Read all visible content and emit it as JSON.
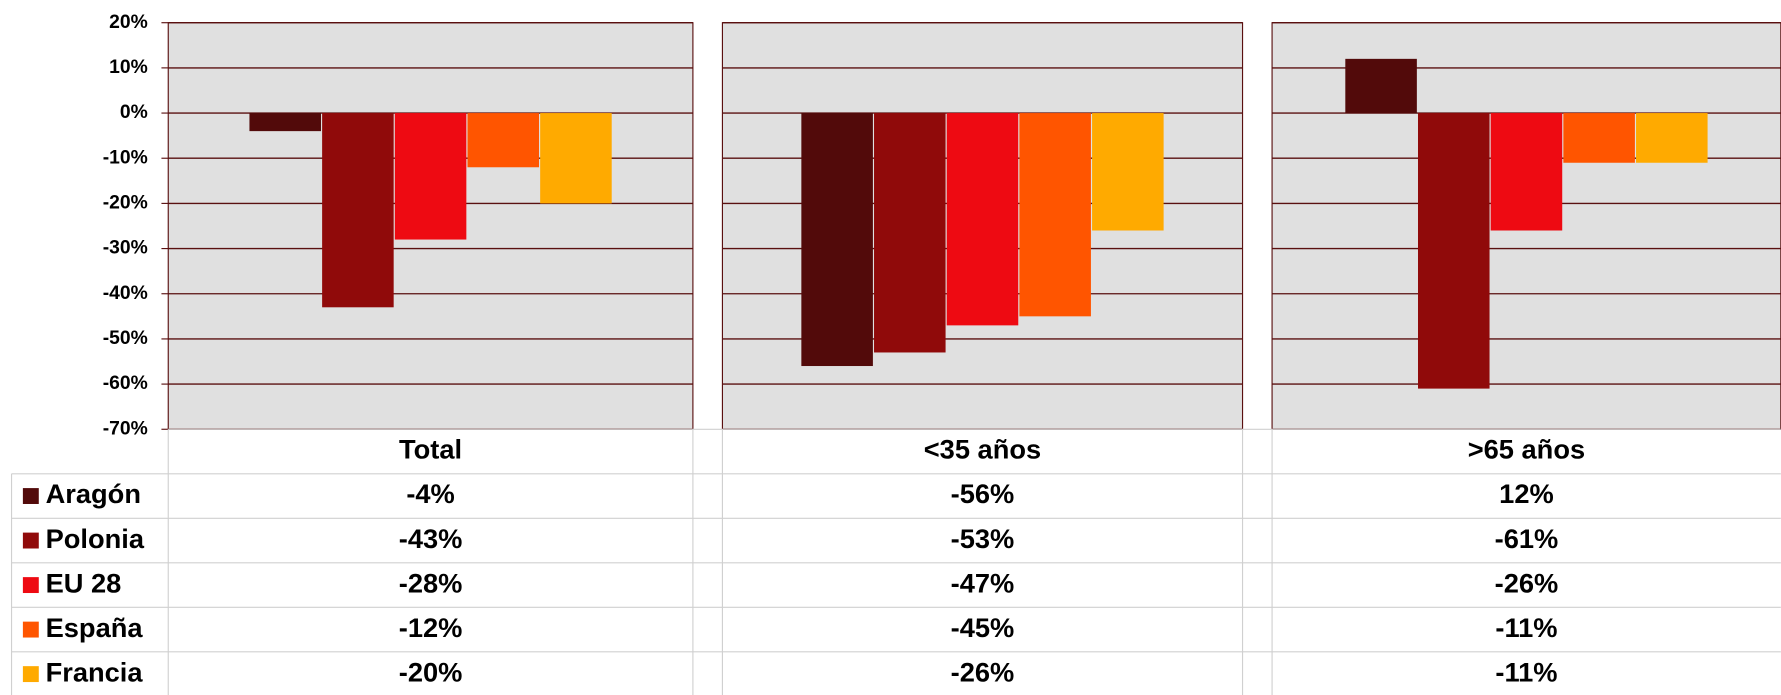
{
  "chart_data": {
    "type": "bar",
    "categories": [
      "Total",
      "<35 años",
      ">65 años"
    ],
    "series": [
      {
        "name": "Aragón",
        "color": "#520a0a",
        "values": [
          -4,
          -56,
          12
        ],
        "value_labels": [
          "-4%",
          "-56%",
          "12%"
        ]
      },
      {
        "name": "Polonia",
        "color": "#900a0a",
        "values": [
          -43,
          -53,
          -61
        ],
        "value_labels": [
          "-43%",
          "-53%",
          "-61%"
        ]
      },
      {
        "name": "EU 28",
        "color": "#ee0a12",
        "values": [
          -28,
          -47,
          -26
        ],
        "value_labels": [
          "-28%",
          "-47%",
          "-26%"
        ]
      },
      {
        "name": "España",
        "color": "#ff5500",
        "values": [
          -12,
          -45,
          -11
        ],
        "value_labels": [
          "-12%",
          "-45%",
          "-11%"
        ]
      },
      {
        "name": "Francia",
        "color": "#ffaa00",
        "values": [
          -20,
          -26,
          -11
        ],
        "value_labels": [
          "-20%",
          "-26%",
          "-11%"
        ]
      }
    ],
    "ylim": [
      -70,
      20
    ],
    "yticks": [
      {
        "value": 20,
        "label": "20%"
      },
      {
        "value": 10,
        "label": "10%"
      },
      {
        "value": 0,
        "label": "0%"
      },
      {
        "value": -10,
        "label": "-10%"
      },
      {
        "value": -20,
        "label": "-20%"
      },
      {
        "value": -30,
        "label": "-30%"
      },
      {
        "value": -40,
        "label": "-40%"
      },
      {
        "value": -50,
        "label": "-50%"
      },
      {
        "value": -60,
        "label": "-60%"
      },
      {
        "value": -70,
        "label": "-70%"
      }
    ],
    "grid": true,
    "legend": "table"
  }
}
